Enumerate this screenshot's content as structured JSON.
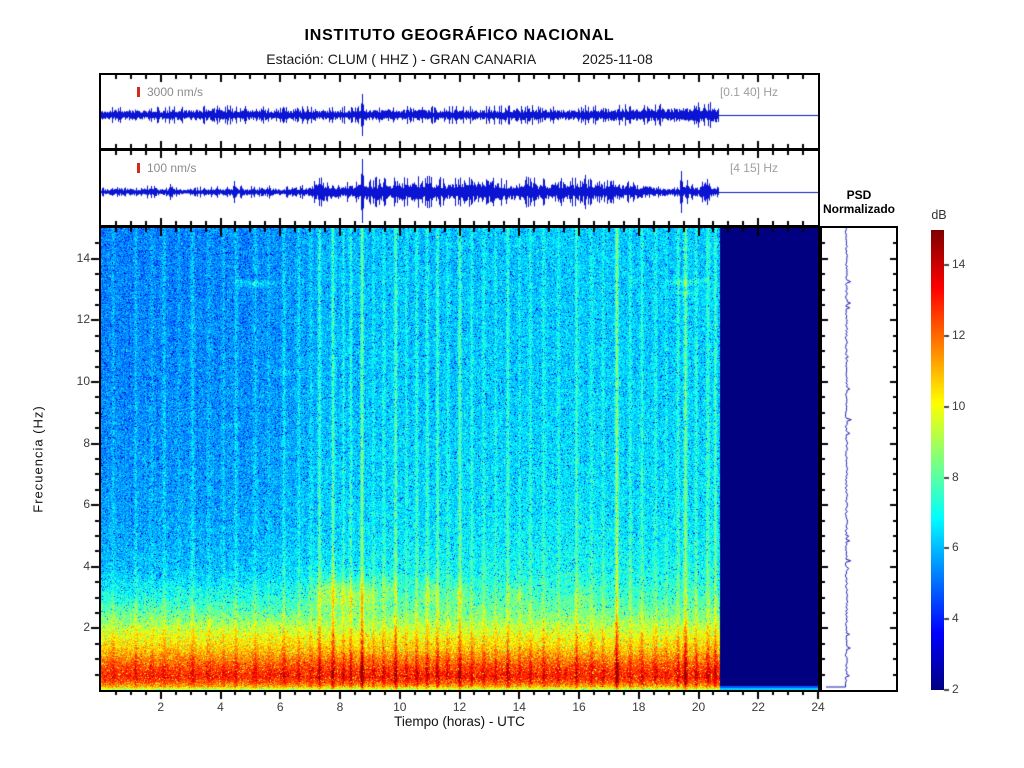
{
  "header": {
    "title": "INSTITUTO GEOGRÁFICO NACIONAL",
    "station_line": "Estación:  CLUM ( HHZ ) - GRAN CANARIA",
    "date": "2025-11-08"
  },
  "colors": {
    "trace_blue": "#0a14d2",
    "marker_red": "#d42a20",
    "scale_label_gray": "#8c8c8c",
    "band_label_gray": "#9e9e9e",
    "tick_label_gray": "#3c3c3c",
    "axis_black": "#000000",
    "nodata_navy": "#00008f",
    "psd_curve_blue": "#1616b4"
  },
  "chart_data": [
    {
      "id": "seismogram_broadband",
      "type": "line",
      "scale_label": "3000 nm/s",
      "filter_band": "[0.1 40] Hz",
      "x_range_hours": [
        0,
        24
      ],
      "data_end_hour": 20.7,
      "envelope": [
        [
          0,
          4.5
        ],
        [
          2,
          4.5
        ],
        [
          4,
          5
        ],
        [
          6,
          4.5
        ],
        [
          8,
          4.5
        ],
        [
          10,
          5
        ],
        [
          12,
          4.5
        ],
        [
          14,
          5
        ],
        [
          16,
          5
        ],
        [
          17,
          5.5
        ],
        [
          18,
          5.5
        ],
        [
          19,
          6
        ],
        [
          19.8,
          6.5
        ],
        [
          20.3,
          7
        ],
        [
          20.7,
          7.5
        ]
      ],
      "spikes": [
        [
          8.72,
          21
        ]
      ]
    },
    {
      "id": "seismogram_filtered",
      "type": "line",
      "scale_label": "100 nm/s",
      "filter_band": "[4 15] Hz",
      "x_range_hours": [
        0,
        24
      ],
      "data_end_hour": 20.7,
      "envelope": [
        [
          0,
          2.5
        ],
        [
          0.5,
          3
        ],
        [
          1,
          3
        ],
        [
          1.5,
          3.5
        ],
        [
          2,
          3
        ],
        [
          2.5,
          3
        ],
        [
          3,
          2.5
        ],
        [
          3.5,
          3
        ],
        [
          4,
          3
        ],
        [
          4.4,
          3.5
        ],
        [
          5,
          3
        ],
        [
          5.5,
          3.5
        ],
        [
          6,
          3
        ],
        [
          6.5,
          3.5
        ],
        [
          7,
          4
        ],
        [
          7.2,
          7
        ],
        [
          7.5,
          8
        ],
        [
          7.8,
          6
        ],
        [
          8.1,
          5
        ],
        [
          8.4,
          6
        ],
        [
          8.6,
          7
        ],
        [
          8.75,
          8
        ],
        [
          9,
          7
        ],
        [
          9.3,
          8
        ],
        [
          9.6,
          7
        ],
        [
          10,
          8
        ],
        [
          10.3,
          7
        ],
        [
          10.6,
          8
        ],
        [
          11,
          9
        ],
        [
          11.3,
          8
        ],
        [
          11.6,
          7
        ],
        [
          12,
          8
        ],
        [
          12.3,
          9
        ],
        [
          12.6,
          8
        ],
        [
          13,
          9
        ],
        [
          13.3,
          8
        ],
        [
          13.6,
          7
        ],
        [
          14,
          8
        ],
        [
          14.3,
          9
        ],
        [
          14.6,
          7
        ],
        [
          15,
          7
        ],
        [
          15.3,
          8
        ],
        [
          15.6,
          7
        ],
        [
          16,
          8
        ],
        [
          16.3,
          9
        ],
        [
          16.6,
          7
        ],
        [
          17,
          8
        ],
        [
          17.3,
          7
        ],
        [
          17.6,
          6
        ],
        [
          18,
          6
        ],
        [
          18.3,
          5
        ],
        [
          18.6,
          4
        ],
        [
          19,
          3.5
        ],
        [
          19.3,
          4
        ],
        [
          19.5,
          5
        ],
        [
          19.8,
          4
        ],
        [
          20,
          4
        ],
        [
          20.2,
          6
        ],
        [
          20.4,
          5
        ],
        [
          20.6,
          4
        ],
        [
          20.7,
          4
        ]
      ],
      "spikes": [
        [
          2.3,
          8
        ],
        [
          4.45,
          11
        ],
        [
          7.3,
          14
        ],
        [
          8.72,
          33
        ],
        [
          9.5,
          13
        ],
        [
          10.9,
          16
        ],
        [
          11.3,
          12
        ],
        [
          12.4,
          13
        ],
        [
          13.1,
          11
        ],
        [
          14.2,
          12
        ],
        [
          19.42,
          21
        ],
        [
          19.6,
          12
        ],
        [
          20.3,
          13
        ]
      ]
    },
    {
      "id": "spectrogram",
      "type": "heatmap",
      "xlabel": "Tiempo (horas) - UTC",
      "ylabel": "Frecuencia  (Hz)",
      "x_range_hours": [
        0,
        24
      ],
      "y_range_hz": [
        0,
        15
      ],
      "x_ticks": [
        2,
        4,
        6,
        8,
        10,
        12,
        14,
        16,
        18,
        20,
        22,
        24
      ],
      "y_ticks": [
        2,
        4,
        6,
        8,
        10,
        12,
        14
      ],
      "minor_tick_step": 0.5,
      "colormap": "jet",
      "clim_db": [
        2,
        15
      ],
      "data_end_hour": 20.7,
      "freq_profile_db": [
        [
          0.05,
          9.3
        ],
        [
          0.13,
          11.2
        ],
        [
          0.26,
          12.3
        ],
        [
          0.45,
          13.0
        ],
        [
          0.65,
          12.7
        ],
        [
          0.85,
          12.2
        ],
        [
          1.1,
          11.5
        ],
        [
          1.35,
          10.8
        ],
        [
          1.6,
          10.3
        ],
        [
          1.9,
          9.7
        ],
        [
          2.2,
          8.9
        ],
        [
          2.5,
          8.3
        ],
        [
          2.8,
          7.8
        ],
        [
          3.2,
          7.3
        ],
        [
          3.6,
          6.9
        ],
        [
          4.0,
          6.6
        ],
        [
          5,
          6.3
        ],
        [
          6,
          6.15
        ],
        [
          8,
          6.0
        ],
        [
          10,
          5.9
        ],
        [
          12,
          5.85
        ],
        [
          15,
          5.8
        ]
      ],
      "time_offset_db": [
        [
          0,
          -0.55
        ],
        [
          6,
          -0.35
        ],
        [
          7.5,
          0.1
        ],
        [
          9,
          0.25
        ],
        [
          12,
          0.3
        ],
        [
          17,
          0.45
        ],
        [
          20.7,
          0.4
        ]
      ],
      "event_streaks": [
        [
          0.4,
          0.7
        ],
        [
          1.15,
          0.9
        ],
        [
          1.7,
          0.5
        ],
        [
          2.1,
          0.8
        ],
        [
          2.6,
          0.5
        ],
        [
          3.05,
          1.0
        ],
        [
          3.6,
          0.6
        ],
        [
          4.1,
          0.5
        ],
        [
          4.5,
          0.9
        ],
        [
          5.15,
          0.8
        ],
        [
          5.6,
          0.6
        ],
        [
          6.1,
          1.1
        ],
        [
          6.6,
          0.9
        ],
        [
          7.0,
          0.7
        ],
        [
          7.3,
          1.7
        ],
        [
          7.75,
          1.9
        ],
        [
          8.1,
          1.0
        ],
        [
          8.35,
          1.2
        ],
        [
          8.72,
          2.4
        ],
        [
          9.1,
          0.8
        ],
        [
          9.45,
          1.0
        ],
        [
          9.85,
          1.7
        ],
        [
          10.2,
          0.8
        ],
        [
          10.55,
          1.1
        ],
        [
          10.9,
          1.2
        ],
        [
          11.25,
          1.4
        ],
        [
          11.6,
          0.8
        ],
        [
          12.0,
          1.8
        ],
        [
          12.4,
          1.0
        ],
        [
          12.8,
          0.8
        ],
        [
          13.2,
          0.9
        ],
        [
          13.6,
          1.2
        ],
        [
          14.0,
          0.8
        ],
        [
          14.35,
          1.0
        ],
        [
          14.8,
          0.9
        ],
        [
          15.3,
          0.8
        ],
        [
          15.9,
          1.3
        ],
        [
          16.4,
          0.9
        ],
        [
          16.8,
          0.8
        ],
        [
          17.25,
          2.4
        ],
        [
          17.7,
          0.9
        ],
        [
          18.1,
          1.0
        ],
        [
          18.55,
          0.8
        ],
        [
          18.9,
          0.7
        ],
        [
          19.3,
          1.0
        ],
        [
          19.55,
          2.2
        ],
        [
          19.9,
          1.1
        ],
        [
          20.3,
          1.4
        ],
        [
          20.55,
          1.6
        ]
      ],
      "blobs": [
        [
          7.6,
          3.2,
          0.5,
          0.5,
          1.6
        ],
        [
          8.3,
          3.0,
          0.4,
          0.5,
          1.3
        ],
        [
          8.9,
          3.1,
          0.35,
          0.5,
          1.2
        ],
        [
          9.6,
          3.3,
          0.3,
          0.4,
          1.0
        ],
        [
          11.0,
          3.2,
          0.35,
          0.45,
          1.1
        ],
        [
          12.0,
          3.1,
          0.3,
          0.4,
          1.0
        ],
        [
          13.9,
          3.05,
          0.3,
          0.4,
          0.8
        ],
        [
          16.1,
          3.0,
          0.25,
          0.35,
          0.7
        ]
      ],
      "dashes": [
        [
          5.2,
          13.2,
          0.6,
          0.09,
          1.1
        ],
        [
          6.1,
          10.35,
          0.5,
          0.08,
          0.9
        ],
        [
          4.6,
          13.3,
          0.3,
          0.07,
          0.8
        ],
        [
          19.55,
          13.25,
          0.55,
          0.1,
          1.2
        ],
        [
          19.55,
          12.9,
          0.3,
          0.07,
          0.8
        ],
        [
          4.3,
          8.6,
          0.4,
          0.07,
          0.6
        ],
        [
          3.1,
          11.8,
          0.3,
          0.06,
          0.5
        ]
      ]
    },
    {
      "id": "psd_normalizado",
      "type": "line",
      "title_line1": "PSD",
      "title_line2": "Normalizado",
      "x_range_norm": [
        0,
        1
      ],
      "y_range_hz": [
        0,
        15
      ],
      "curve": [
        [
          15,
          0.33
        ],
        [
          14.5,
          0.31
        ],
        [
          14,
          0.32
        ],
        [
          13.5,
          0.3
        ],
        [
          13,
          0.31
        ],
        [
          12.5,
          0.36
        ],
        [
          12.2,
          0.31
        ],
        [
          11.5,
          0.3
        ],
        [
          11,
          0.31
        ],
        [
          10.5,
          0.3
        ],
        [
          10,
          0.31
        ],
        [
          9.5,
          0.34
        ],
        [
          9.2,
          0.31
        ],
        [
          8.5,
          0.3
        ],
        [
          8,
          0.31
        ],
        [
          7.5,
          0.3
        ],
        [
          7,
          0.31
        ],
        [
          6.5,
          0.33
        ],
        [
          6,
          0.3
        ],
        [
          5.5,
          0.31
        ],
        [
          5,
          0.31
        ],
        [
          4.5,
          0.32
        ],
        [
          4,
          0.33
        ],
        [
          3.6,
          0.35
        ],
        [
          3.2,
          0.37
        ],
        [
          2.9,
          0.38
        ],
        [
          2.6,
          0.4
        ],
        [
          2.3,
          0.42
        ],
        [
          2.0,
          0.44
        ],
        [
          1.8,
          0.48
        ],
        [
          1.6,
          0.52
        ],
        [
          1.4,
          0.56
        ],
        [
          1.2,
          0.61
        ],
        [
          1.0,
          0.67
        ],
        [
          0.85,
          0.73
        ],
        [
          0.7,
          0.79
        ],
        [
          0.55,
          0.86
        ],
        [
          0.4,
          0.92
        ],
        [
          0.28,
          0.96
        ],
        [
          0.18,
          0.98
        ],
        [
          0.1,
          0.99
        ]
      ]
    },
    {
      "id": "colorbar",
      "type": "colorbar",
      "label": "dB",
      "ticks": [
        2,
        4,
        6,
        8,
        10,
        12,
        14
      ],
      "range_db": [
        2,
        15
      ],
      "colormap": "jet"
    }
  ]
}
